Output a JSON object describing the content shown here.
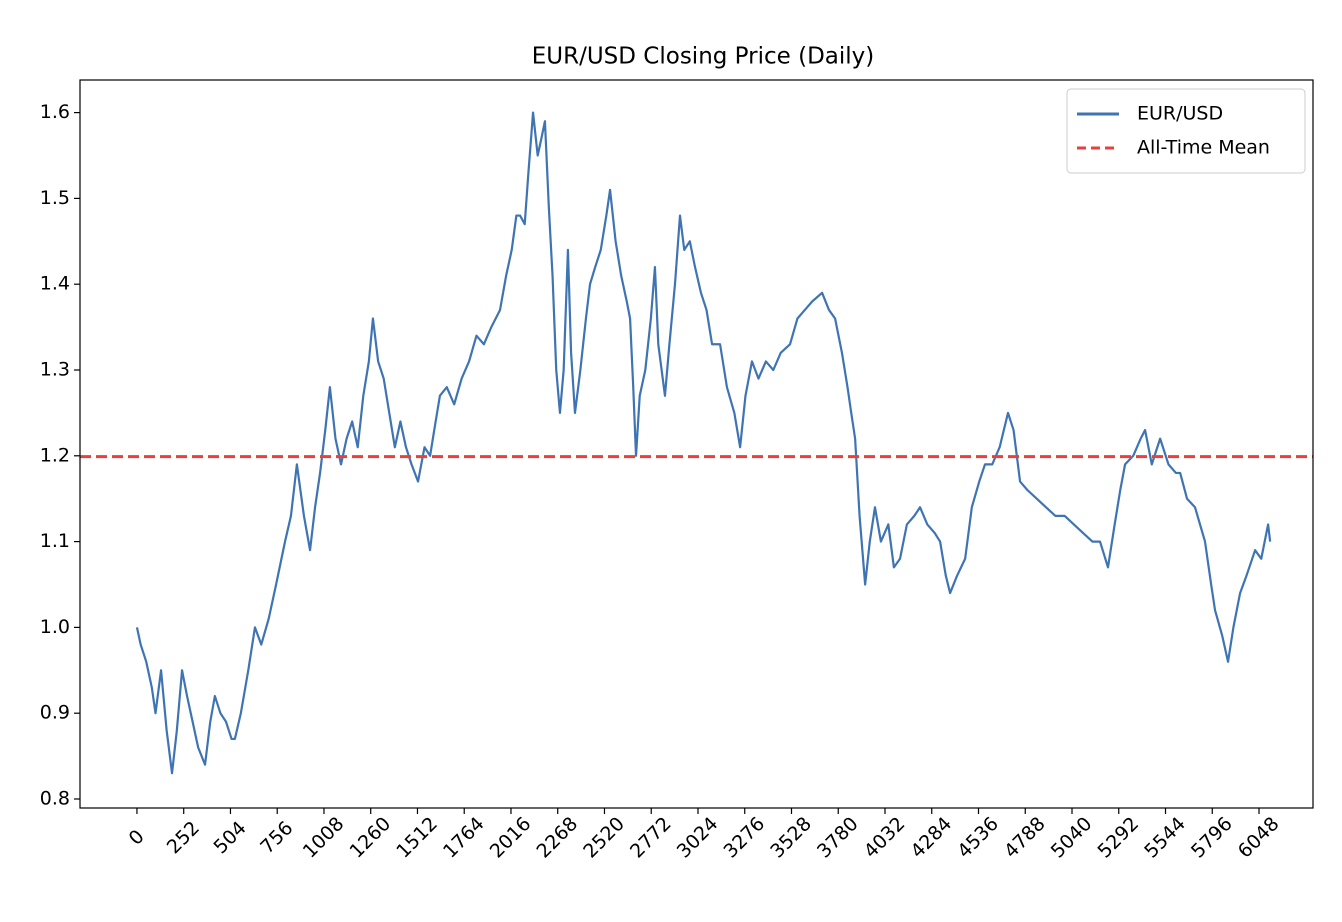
{
  "chart_data": {
    "type": "line",
    "title": "EUR/USD Closing Price (Daily)",
    "x": [
      0,
      20,
      50,
      80,
      100,
      130,
      160,
      189,
      215,
      243,
      270,
      300,
      330,
      367,
      395,
      420,
      450,
      480,
      510,
      528,
      560,
      600,
      636,
      670,
      710,
      750,
      798,
      830,
      862,
      900,
      933,
      960,
      987,
      1015,
      1040,
      1070,
      1100,
      1130,
      1160,
      1190,
      1220,
      1250,
      1272,
      1300,
      1330,
      1360,
      1390,
      1420,
      1450,
      1480,
      1515,
      1550,
      1580,
      1610,
      1633,
      1670,
      1710,
      1750,
      1790,
      1830,
      1870,
      1910,
      1957,
      1990,
      2020,
      2045,
      2065,
      2090,
      2110,
      2135,
      2160,
      2180,
      2199,
      2220,
      2240,
      2260,
      2280,
      2300,
      2323,
      2340,
      2361,
      2390,
      2420,
      2442,
      2470,
      2500,
      2530,
      2550,
      2580,
      2610,
      2640,
      2658,
      2675,
      2690,
      2710,
      2740,
      2770,
      2792,
      2810,
      2846,
      2870,
      2900,
      2927,
      2950,
      2980,
      3008,
      3040,
      3070,
      3100,
      3143,
      3180,
      3220,
      3251,
      3280,
      3315,
      3350,
      3390,
      3430,
      3470,
      3520,
      3560,
      3600,
      3640,
      3693,
      3730,
      3763,
      3800,
      3830,
      3850,
      3871,
      3895,
      3925,
      3950,
      3978,
      4010,
      4050,
      4080,
      4113,
      4150,
      4190,
      4221,
      4260,
      4300,
      4329,
      4360,
      4383,
      4420,
      4464,
      4500,
      4540,
      4571,
      4610,
      4650,
      4695,
      4725,
      4760,
      4800,
      4850,
      4900,
      4950,
      5000,
      5050,
      5100,
      5150,
      5191,
      5234,
      5270,
      5300,
      5326,
      5370,
      5410,
      5434,
      5470,
      5515,
      5560,
      5600,
      5623,
      5660,
      5703,
      5730,
      5757,
      5790,
      5811,
      5850,
      5881,
      5910,
      5946,
      5980,
      6027,
      6060,
      6097,
      6108
    ],
    "series": [
      {
        "name": "EUR/USD",
        "color": "#3f74b3",
        "values": [
          1.0,
          0.98,
          0.96,
          0.93,
          0.9,
          0.95,
          0.88,
          0.83,
          0.88,
          0.95,
          0.92,
          0.89,
          0.86,
          0.84,
          0.89,
          0.92,
          0.9,
          0.89,
          0.87,
          0.87,
          0.9,
          0.95,
          1.0,
          0.98,
          1.01,
          1.05,
          1.1,
          1.13,
          1.19,
          1.13,
          1.09,
          1.14,
          1.18,
          1.23,
          1.28,
          1.22,
          1.19,
          1.22,
          1.24,
          1.21,
          1.27,
          1.31,
          1.36,
          1.31,
          1.29,
          1.25,
          1.21,
          1.24,
          1.21,
          1.19,
          1.17,
          1.21,
          1.2,
          1.24,
          1.27,
          1.28,
          1.26,
          1.29,
          1.31,
          1.34,
          1.33,
          1.35,
          1.37,
          1.41,
          1.44,
          1.48,
          1.48,
          1.47,
          1.53,
          1.6,
          1.55,
          1.57,
          1.59,
          1.49,
          1.41,
          1.3,
          1.25,
          1.3,
          1.44,
          1.32,
          1.25,
          1.3,
          1.36,
          1.4,
          1.42,
          1.44,
          1.48,
          1.51,
          1.45,
          1.41,
          1.38,
          1.36,
          1.28,
          1.2,
          1.27,
          1.3,
          1.36,
          1.42,
          1.33,
          1.27,
          1.33,
          1.4,
          1.48,
          1.44,
          1.45,
          1.42,
          1.39,
          1.37,
          1.33,
          1.33,
          1.28,
          1.25,
          1.21,
          1.27,
          1.31,
          1.29,
          1.31,
          1.3,
          1.32,
          1.33,
          1.36,
          1.37,
          1.38,
          1.39,
          1.37,
          1.36,
          1.32,
          1.28,
          1.25,
          1.22,
          1.13,
          1.05,
          1.1,
          1.14,
          1.1,
          1.12,
          1.07,
          1.08,
          1.12,
          1.13,
          1.14,
          1.12,
          1.11,
          1.1,
          1.06,
          1.04,
          1.06,
          1.08,
          1.14,
          1.17,
          1.19,
          1.19,
          1.21,
          1.25,
          1.23,
          1.17,
          1.16,
          1.15,
          1.14,
          1.13,
          1.13,
          1.12,
          1.11,
          1.1,
          1.1,
          1.07,
          1.12,
          1.16,
          1.19,
          1.2,
          1.22,
          1.23,
          1.19,
          1.22,
          1.19,
          1.18,
          1.18,
          1.15,
          1.14,
          1.12,
          1.1,
          1.05,
          1.02,
          0.99,
          0.96,
          1.0,
          1.04,
          1.06,
          1.09,
          1.08,
          1.12,
          1.1
        ]
      }
    ],
    "hlines": [
      {
        "name": "All-Time Mean",
        "value": 1.199,
        "color": "#e8413c",
        "style": "dashed"
      }
    ],
    "xlim": [
      -307,
      6339
    ],
    "ylim": [
      0.7895,
      1.638
    ],
    "xticks": [
      0,
      252,
      504,
      756,
      1008,
      1260,
      1512,
      1764,
      2016,
      2268,
      2520,
      2772,
      3024,
      3276,
      3528,
      3780,
      4032,
      4284,
      4536,
      4788,
      5040,
      5292,
      5544,
      5796,
      6048
    ],
    "yticks": [
      0.8,
      0.9,
      {
        "value": 1,
        "label": "1.0"
      },
      1.1,
      1.2,
      1.3,
      1.4,
      1.5,
      1.6
    ],
    "legend": "upper right"
  }
}
